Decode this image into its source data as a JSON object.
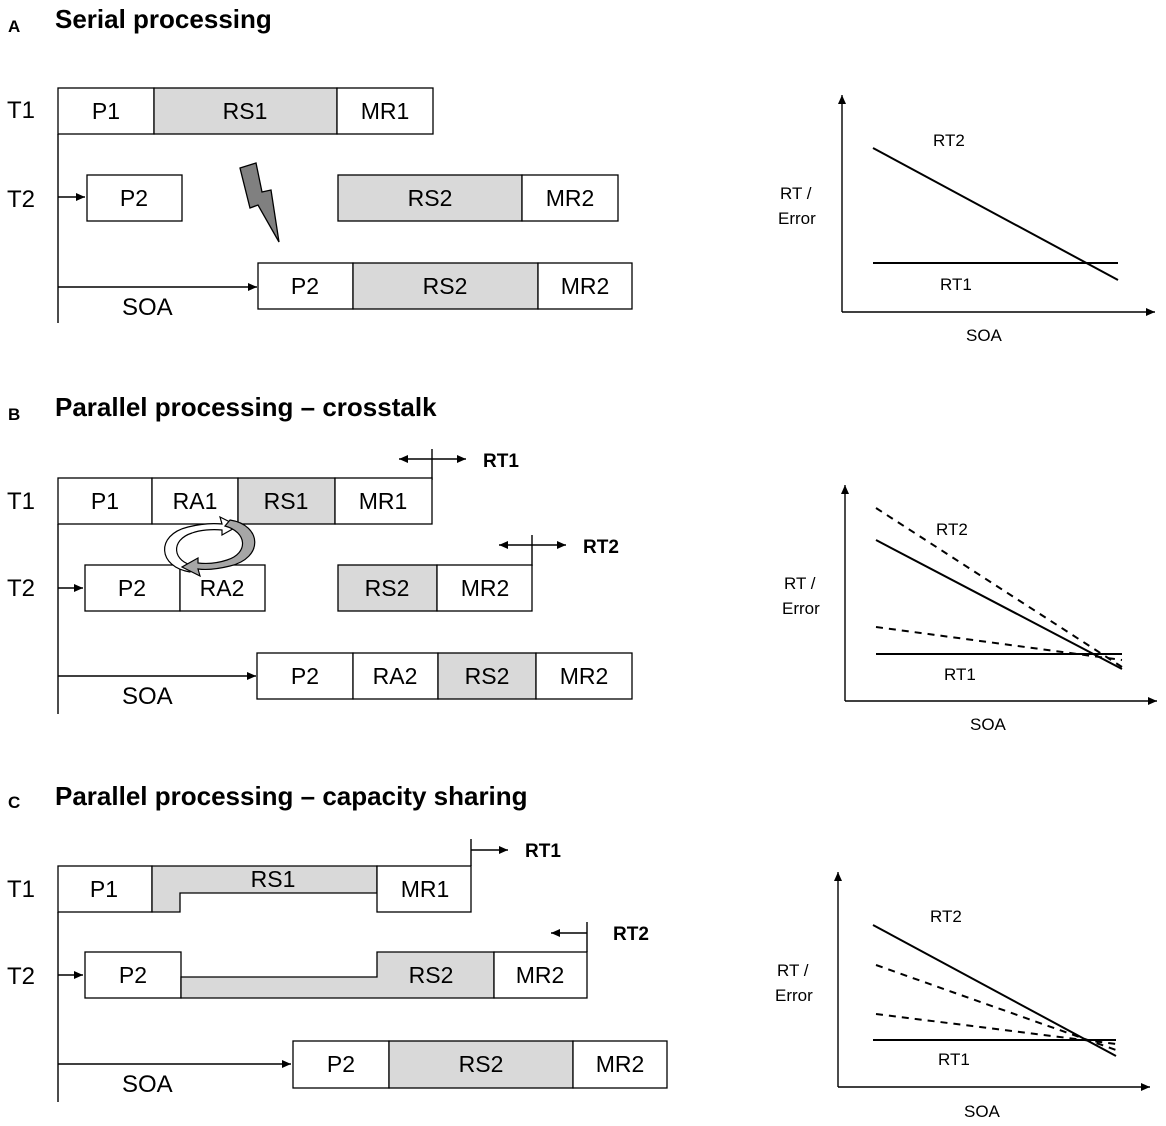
{
  "panels": {
    "a": {
      "letter": "A",
      "title": "Serial processing",
      "t1": "T1",
      "t2": "T2",
      "row1": [
        "P1",
        "RS1",
        "MR1"
      ],
      "row2a": [
        "P2"
      ],
      "row2b": [
        "RS2",
        "MR2"
      ],
      "row3": [
        "P2",
        "RS2",
        "MR2"
      ],
      "soa": "SOA",
      "graph": {
        "ylabel_1": "RT /",
        "ylabel_2": "Error",
        "xlabel": "SOA",
        "line1": "RT2",
        "line2": "RT1"
      }
    },
    "b": {
      "letter": "B",
      "title": "Parallel processing – crosstalk",
      "t1": "T1",
      "t2": "T2",
      "rt1": "RT1",
      "rt2": "RT2",
      "row1": [
        "P1",
        "RA1",
        "RS1",
        "MR1"
      ],
      "row2a": [
        "P2",
        "RA2"
      ],
      "row2b": [
        "RS2",
        "MR2"
      ],
      "row3": [
        "P2",
        "RA2",
        "RS2",
        "MR2"
      ],
      "soa": "SOA",
      "graph": {
        "ylabel_1": "RT /",
        "ylabel_2": "Error",
        "xlabel": "SOA",
        "line1": "RT2",
        "line2": "RT1"
      }
    },
    "c": {
      "letter": "C",
      "title": "Parallel processing – capacity sharing",
      "t1": "T1",
      "t2": "T2",
      "rt1": "RT1",
      "rt2": "RT2",
      "row1": [
        "P1",
        "RS1",
        "MR1"
      ],
      "row2": [
        "P2",
        "RS2",
        "MR2"
      ],
      "row3": [
        "P2",
        "RS2",
        "MR2"
      ],
      "soa": "SOA",
      "graph": {
        "ylabel_1": "RT /",
        "ylabel_2": "Error",
        "xlabel": "SOA",
        "line1": "RT2",
        "line2": "RT1"
      }
    }
  }
}
